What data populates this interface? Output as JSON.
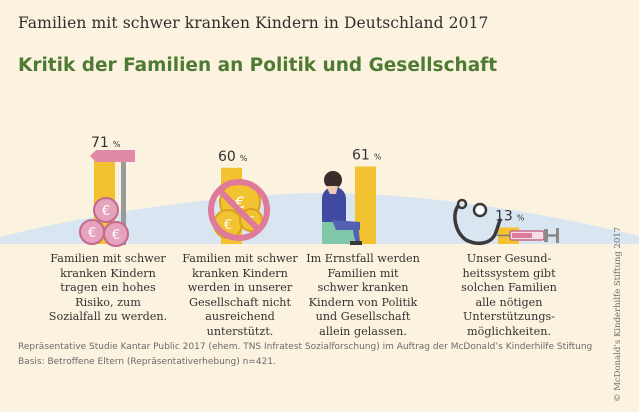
{
  "header": {
    "supertitle": "Familien mit schwer kranken Kindern in Deutschland 2017",
    "title": "Kritik der Familien an Politik und Gesellschaft"
  },
  "chart_data": {
    "type": "bar",
    "unit": "%",
    "ylim": [
      0,
      100
    ],
    "categories": [
      "Familien mit schwer kranken Kindern tragen ein hohes Risiko, zum Sozialfall zu werden.",
      "Familien mit schwer kranken Kindern werden in unserer Gesellschaft nicht ausreichend unterstützt.",
      "Im Ernstfall werden Familien mit schwer kranken Kindern von Politik und Gesellschaft allein gelassen.",
      "Unser Gesundheitssystem gibt solchen Familien alle nötigen Unterstützungsmöglichkeiten."
    ],
    "values": [
      71,
      60,
      61,
      13
    ],
    "bar_color": "#f2c230"
  },
  "descriptions": [
    "Familien mit schwer\nkranken Kindern\ntragen ein hohes\nRisiko, zum\nSozialfall zu werden.",
    "Familien mit schwer\nkranken Kindern\nwerden in unserer\nGesellschaft nicht\nausreichend\nunterstützt.",
    "Im Ernstfall werden\nFamilien mit\nschwer kranken\nKindern von Politik\nund Gesellschaft\nallein gelassen.",
    "Unser Gesund-\nheitssystem gibt\nsolchen Familien\nalle nötigen\nUnterstützungs-\nmöglichkeiten."
  ],
  "source": {
    "line1": "Repräsentative Studie Kantar Public 2017 (ehem. TNS Infratest Sozialforschung) im Auftrag der McDonald’s Kinderhilfe Stiftung",
    "line2": "Basis: Betroffene Eltern (Repräsentativerhebung) n=421."
  },
  "credit": "© McDonald’s Kinderhilfe Stiftung 2017",
  "icons": [
    "signpost-icon",
    "coins-icon",
    "prohibited-coins-icon",
    "sitting-woman-icon",
    "stethoscope-icon",
    "syringe-icon"
  ]
}
